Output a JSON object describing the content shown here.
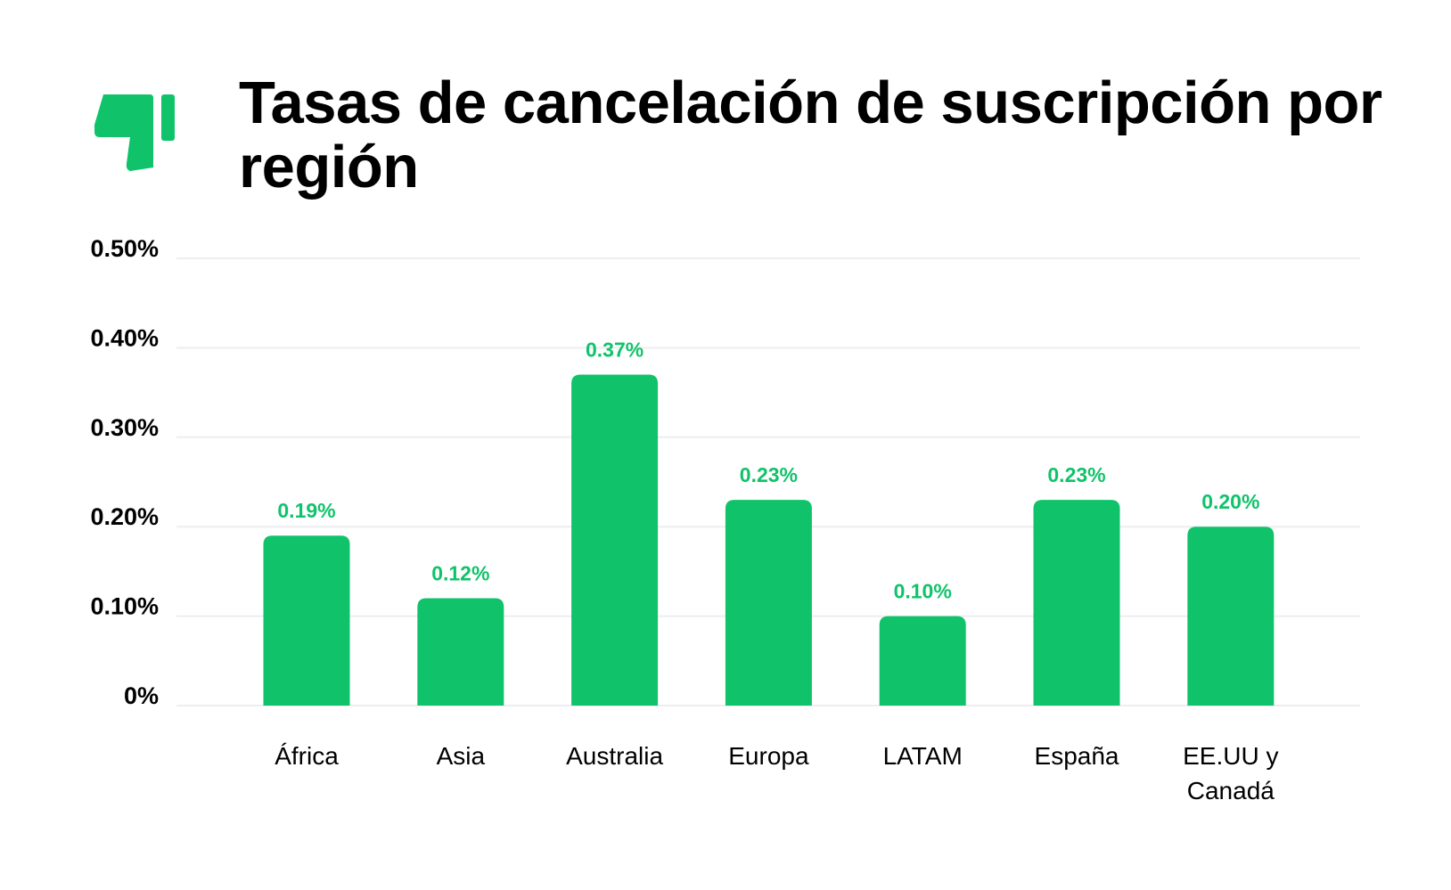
{
  "header": {
    "title": "Tasas de cancelación de suscripción por región",
    "icon": "thumbs-down-icon"
  },
  "colors": {
    "bar": "#10C36A",
    "label": "#10C36A",
    "grid": "#EEEEF2",
    "text": "#000000"
  },
  "chart_data": {
    "type": "bar",
    "title": "Tasas de cancelación de suscripción por región",
    "categories": [
      "África",
      "Asia",
      "Australia",
      "Europa",
      "LATAM",
      "España",
      "EE.UU y Canadá"
    ],
    "values": [
      0.19,
      0.12,
      0.37,
      0.23,
      0.1,
      0.23,
      0.2
    ],
    "data_labels": [
      "0.19%",
      "0.12%",
      "0.37%",
      "0.23%",
      "0.10%",
      "0.23%",
      "0.20%"
    ],
    "yticks": [
      0,
      0.1,
      0.2,
      0.3,
      0.4,
      0.5
    ],
    "ytick_labels": [
      "0%",
      "0.10%",
      "0.20%",
      "0.30%",
      "0.40%",
      "0.50%"
    ],
    "ylim": [
      0,
      0.5
    ],
    "xlabel": "",
    "ylabel": "",
    "grid": true,
    "unit": "%"
  }
}
